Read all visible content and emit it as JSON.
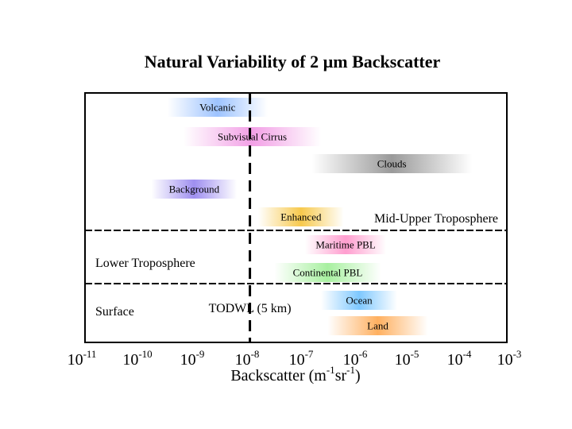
{
  "chart_data": {
    "type": "bar",
    "orientation": "horizontal-range",
    "title": "Natural Variability of 2 µm Backscatter",
    "xlabel": {
      "base": "Backscatter (m",
      "exp1": "-1",
      "mid": "sr",
      "exp2": "-1",
      "end": ")"
    },
    "x_scale": "log",
    "xlim": [
      1e-11,
      0.001
    ],
    "x_ticks": [
      {
        "base": "10",
        "exp": "-11",
        "value": 1e-11
      },
      {
        "base": "10",
        "exp": "-10",
        "value": 1e-10
      },
      {
        "base": "10",
        "exp": "-9",
        "value": 1e-09
      },
      {
        "base": "10",
        "exp": "-8",
        "value": 1e-08
      },
      {
        "base": "10",
        "exp": "-7",
        "value": 1e-07
      },
      {
        "base": "10",
        "exp": "-6",
        "value": 1e-06
      },
      {
        "base": "10",
        "exp": "-5",
        "value": 1e-05
      },
      {
        "base": "10",
        "exp": "-4",
        "value": 0.0001
      },
      {
        "base": "10",
        "exp": "-3",
        "value": 0.001
      }
    ],
    "bars": [
      {
        "name": "Volcanic",
        "start": 4e-10,
        "end": 3e-08,
        "color": "#9dc3ff"
      },
      {
        "name": "Subvisual Cirrus",
        "start": 8e-10,
        "end": 3e-07,
        "color": "#f2a0e6"
      },
      {
        "name": "Clouds",
        "start": 2e-07,
        "end": 0.0002,
        "color": "#9a9a9a"
      },
      {
        "name": "Background",
        "start": 2e-10,
        "end": 8e-09,
        "color": "#9f8ff0"
      },
      {
        "name": "Enhanced",
        "start": 2e-08,
        "end": 8e-07,
        "color": "#f7c94d"
      },
      {
        "name": "Maritime PBL",
        "start": 1.5e-07,
        "end": 5e-06,
        "color": "#ff9ecf"
      },
      {
        "name": "Continental PBL",
        "start": 4e-08,
        "end": 4e-06,
        "color": "#a8f0a0"
      },
      {
        "name": "Ocean",
        "start": 3e-07,
        "end": 8e-06,
        "color": "#7ec8ff"
      },
      {
        "name": "Land",
        "start": 4e-07,
        "end": 3e-05,
        "color": "#ffb060"
      }
    ],
    "regions": [
      {
        "name": "Mid-Upper Troposphere",
        "side": "right"
      },
      {
        "name": "Lower Troposphere",
        "side": "left"
      },
      {
        "name": "Surface",
        "side": "left"
      }
    ],
    "annotations": [
      {
        "text": "TODWL (5 km)",
        "x": 1.4e-08
      }
    ]
  }
}
